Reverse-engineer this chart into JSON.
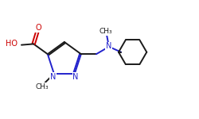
{
  "bg_color": "#ffffff",
  "bond_color": "#1a1a1a",
  "nitrogen_color": "#2222cc",
  "oxygen_color": "#cc0000",
  "line_width": 1.4,
  "figsize": [
    2.5,
    1.5
  ],
  "dpi": 100,
  "xlim": [
    0,
    10
  ],
  "ylim": [
    0,
    6
  ]
}
